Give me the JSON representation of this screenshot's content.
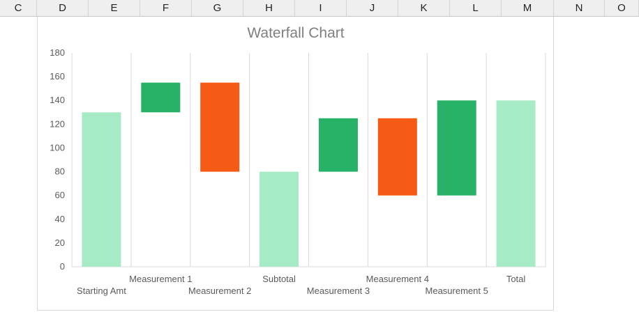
{
  "spreadsheet": {
    "column_headers": [
      "C",
      "D",
      "E",
      "F",
      "G",
      "H",
      "I",
      "J",
      "K",
      "L",
      "M",
      "N",
      "O"
    ]
  },
  "colors": {
    "total": "#a7eac6",
    "increase": "#27b268",
    "decrease": "#f55b14",
    "gridline": "#d9d9d9",
    "axis_text": "#595959",
    "title_text": "#7f7f7f"
  },
  "chart_data": {
    "type": "bar",
    "subtype": "waterfall",
    "title": "Waterfall Chart",
    "xlabel": "",
    "ylabel": "",
    "ylim": [
      0,
      180
    ],
    "y_ticks": [
      "0",
      "20",
      "40",
      "60",
      "80",
      "100",
      "120",
      "140",
      "160",
      "180"
    ],
    "grid": "vertical category separators",
    "legend": "none",
    "categories": [
      "Starting Amt",
      "Measurement 1",
      "Measurement 2",
      "Subtotal",
      "Measurement 3",
      "Measurement 4",
      "Measurement 5",
      "Total"
    ],
    "bars": [
      {
        "label": "Starting Amt",
        "kind": "total",
        "start": 0,
        "end": 130
      },
      {
        "label": "Measurement 1",
        "kind": "increase",
        "start": 130,
        "end": 155
      },
      {
        "label": "Measurement 2",
        "kind": "decrease",
        "start": 155,
        "end": 80
      },
      {
        "label": "Subtotal",
        "kind": "total",
        "start": 0,
        "end": 80
      },
      {
        "label": "Measurement 3",
        "kind": "increase",
        "start": 80,
        "end": 125
      },
      {
        "label": "Measurement 4",
        "kind": "decrease",
        "start": 125,
        "end": 60
      },
      {
        "label": "Measurement 5",
        "kind": "increase",
        "start": 60,
        "end": 140
      },
      {
        "label": "Total",
        "kind": "total",
        "start": 0,
        "end": 140
      }
    ]
  }
}
